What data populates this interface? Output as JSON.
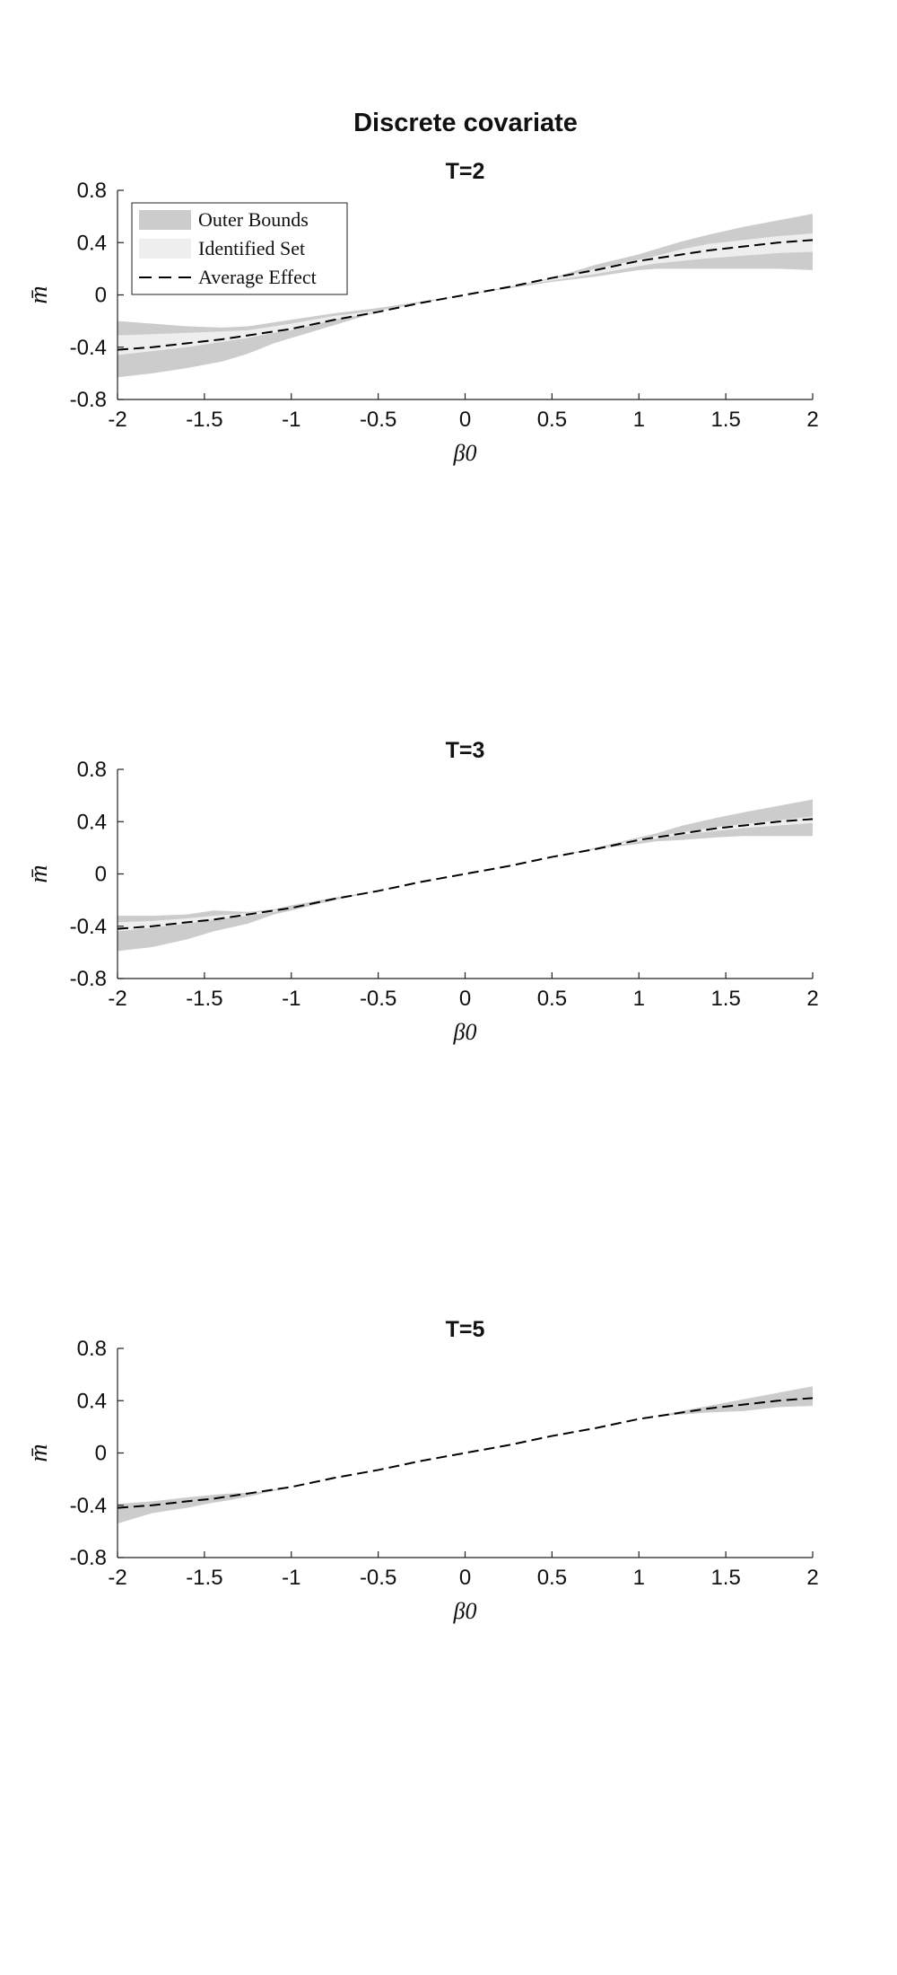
{
  "figure": {
    "title": "Discrete covariate"
  },
  "legend": {
    "outer": "Outer Bounds",
    "identified": "Identified Set",
    "average": "Average Effect"
  },
  "colors": {
    "outer": "#cccccc",
    "identified": "#eeeeee",
    "line": "#000000",
    "axis": "#222222"
  },
  "chart_data": [
    {
      "type": "area",
      "title": "T=2",
      "xlabel": "β0",
      "ylabel": "m̄",
      "xlim": [
        -2,
        2
      ],
      "ylim": [
        -0.8,
        0.8
      ],
      "xticks": [
        "-2",
        "-1.5",
        "-1",
        "-0.5",
        "0",
        "0.5",
        "1",
        "1.5",
        "2"
      ],
      "yticks": [
        "-0.8",
        "-0.4",
        "0",
        "0.4",
        "0.8"
      ],
      "legend_position": "top-left",
      "grid": false,
      "x": [
        -2.0,
        -1.8,
        -1.6,
        -1.4,
        -1.25,
        -1.1,
        -1.0,
        -0.75,
        -0.5,
        -0.25,
        0.0,
        0.25,
        0.5,
        0.75,
        1.0,
        1.1,
        1.25,
        1.4,
        1.6,
        1.8,
        2.0
      ],
      "series": [
        {
          "name": "Outer Bounds",
          "role": "outer",
          "lower": [
            -0.63,
            -0.6,
            -0.56,
            -0.51,
            -0.45,
            -0.37,
            -0.33,
            -0.23,
            -0.13,
            -0.06,
            0.0,
            0.05,
            0.1,
            0.14,
            0.19,
            0.2,
            0.2,
            0.2,
            0.2,
            0.2,
            0.19
          ],
          "upper": [
            -0.2,
            -0.22,
            -0.24,
            -0.25,
            -0.24,
            -0.21,
            -0.19,
            -0.14,
            -0.1,
            -0.05,
            0.0,
            0.06,
            0.13,
            0.23,
            0.31,
            0.35,
            0.41,
            0.46,
            0.52,
            0.57,
            0.62
          ]
        },
        {
          "name": "Identified Set",
          "role": "identified",
          "lower": [
            -0.46,
            -0.43,
            -0.4,
            -0.36,
            -0.33,
            -0.29,
            -0.27,
            -0.19,
            -0.13,
            -0.06,
            0.0,
            0.06,
            0.11,
            0.16,
            0.22,
            0.24,
            0.26,
            0.28,
            0.3,
            0.32,
            0.33
          ],
          "upper": [
            -0.31,
            -0.3,
            -0.29,
            -0.28,
            -0.27,
            -0.24,
            -0.22,
            -0.16,
            -0.12,
            -0.06,
            0.0,
            0.06,
            0.12,
            0.2,
            0.27,
            0.3,
            0.35,
            0.39,
            0.42,
            0.45,
            0.47
          ]
        },
        {
          "name": "Average Effect",
          "role": "average",
          "values": [
            -0.42,
            -0.4,
            -0.37,
            -0.34,
            -0.31,
            -0.28,
            -0.26,
            -0.19,
            -0.13,
            -0.06,
            0.0,
            0.06,
            0.13,
            0.19,
            0.26,
            0.28,
            0.31,
            0.34,
            0.37,
            0.4,
            0.42
          ]
        }
      ]
    },
    {
      "type": "area",
      "title": "T=3",
      "xlabel": "β0",
      "ylabel": "m̄",
      "xlim": [
        -2,
        2
      ],
      "ylim": [
        -0.8,
        0.8
      ],
      "xticks": [
        "-2",
        "-1.5",
        "-1",
        "-0.5",
        "0",
        "0.5",
        "1",
        "1.5",
        "2"
      ],
      "yticks": [
        "-0.8",
        "-0.4",
        "0",
        "0.4",
        "0.8"
      ],
      "grid": false,
      "x": [
        -2.0,
        -1.8,
        -1.6,
        -1.45,
        -1.25,
        -1.1,
        -1.0,
        -0.75,
        -0.5,
        -0.25,
        0.0,
        0.25,
        0.5,
        0.75,
        1.0,
        1.1,
        1.25,
        1.45,
        1.6,
        1.8,
        2.0
      ],
      "series": [
        {
          "name": "Outer Bounds",
          "role": "outer",
          "lower": [
            -0.59,
            -0.56,
            -0.5,
            -0.44,
            -0.38,
            -0.31,
            -0.28,
            -0.2,
            -0.13,
            -0.06,
            0.0,
            0.06,
            0.13,
            0.19,
            0.23,
            0.25,
            0.26,
            0.28,
            0.29,
            0.29,
            0.29
          ],
          "upper": [
            -0.32,
            -0.32,
            -0.31,
            -0.28,
            -0.29,
            -0.27,
            -0.24,
            -0.18,
            -0.13,
            -0.06,
            0.0,
            0.06,
            0.13,
            0.2,
            0.28,
            0.31,
            0.37,
            0.43,
            0.47,
            0.52,
            0.57
          ]
        },
        {
          "name": "Identified Set",
          "role": "identified",
          "lower": [
            -0.44,
            -0.41,
            -0.38,
            -0.35,
            -0.32,
            -0.29,
            -0.26,
            -0.19,
            -0.13,
            -0.06,
            0.0,
            0.06,
            0.13,
            0.19,
            0.25,
            0.27,
            0.3,
            0.33,
            0.35,
            0.37,
            0.39
          ],
          "upper": [
            -0.37,
            -0.36,
            -0.34,
            -0.32,
            -0.3,
            -0.28,
            -0.26,
            -0.19,
            -0.13,
            -0.06,
            0.0,
            0.06,
            0.13,
            0.19,
            0.27,
            0.29,
            0.32,
            0.36,
            0.38,
            0.41,
            0.44
          ]
        },
        {
          "name": "Average Effect",
          "role": "average",
          "values": [
            -0.42,
            -0.4,
            -0.37,
            -0.35,
            -0.31,
            -0.28,
            -0.26,
            -0.19,
            -0.13,
            -0.06,
            0.0,
            0.06,
            0.13,
            0.19,
            0.26,
            0.28,
            0.31,
            0.35,
            0.37,
            0.4,
            0.42
          ]
        }
      ]
    },
    {
      "type": "area",
      "title": "T=5",
      "xlabel": "β0",
      "ylabel": "m̄",
      "xlim": [
        -2,
        2
      ],
      "ylim": [
        -0.8,
        0.8
      ],
      "xticks": [
        "-2",
        "-1.5",
        "-1",
        "-0.5",
        "0",
        "0.5",
        "1",
        "1.5",
        "2"
      ],
      "yticks": [
        "-0.8",
        "-0.4",
        "0",
        "0.4",
        "0.8"
      ],
      "grid": false,
      "x": [
        -2.0,
        -1.8,
        -1.6,
        -1.45,
        -1.35,
        -1.2,
        -1.1,
        -1.0,
        -0.75,
        -0.5,
        -0.25,
        0.0,
        0.25,
        0.5,
        0.75,
        1.0,
        1.1,
        1.2,
        1.4,
        1.6,
        1.8,
        2.0
      ],
      "series": [
        {
          "name": "Outer Bounds",
          "role": "outer",
          "lower": [
            -0.54,
            -0.46,
            -0.42,
            -0.38,
            -0.36,
            -0.32,
            -0.29,
            -0.26,
            -0.19,
            -0.13,
            -0.06,
            0.0,
            0.06,
            0.13,
            0.19,
            0.26,
            0.28,
            0.29,
            0.31,
            0.32,
            0.35,
            0.36
          ],
          "upper": [
            -0.39,
            -0.37,
            -0.34,
            -0.32,
            -0.31,
            -0.3,
            -0.28,
            -0.26,
            -0.19,
            -0.13,
            -0.06,
            0.0,
            0.06,
            0.13,
            0.19,
            0.26,
            0.28,
            0.31,
            0.36,
            0.41,
            0.46,
            0.51
          ]
        },
        {
          "name": "Average Effect",
          "role": "average",
          "values": [
            -0.42,
            -0.4,
            -0.37,
            -0.35,
            -0.33,
            -0.3,
            -0.28,
            -0.26,
            -0.19,
            -0.13,
            -0.06,
            0.0,
            0.06,
            0.13,
            0.19,
            0.26,
            0.28,
            0.3,
            0.34,
            0.37,
            0.4,
            0.42
          ]
        }
      ]
    }
  ]
}
